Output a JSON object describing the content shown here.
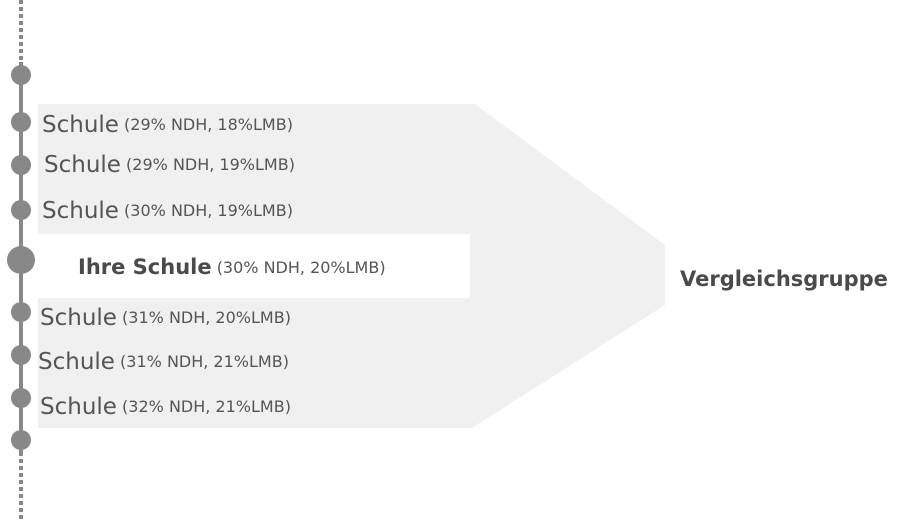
{
  "schools": [
    {
      "name": "Schule",
      "detail": "(29% NDH, 18%LMB)"
    },
    {
      "name": "Schule",
      "detail": "(29% NDH, 19%LMB)"
    },
    {
      "name": "Schule",
      "detail": "(30% NDH, 19%LMB)"
    },
    {
      "name": "Ihre Schule",
      "detail": "(30% NDH, 20%LMB)"
    },
    {
      "name": "Schule",
      "detail": "(31% NDH, 20%LMB)"
    },
    {
      "name": "Schule",
      "detail": "(31% NDH, 21%LMB)"
    },
    {
      "name": "Schule",
      "detail": "(32% NDH, 21%LMB)"
    }
  ],
  "group_label": "Vergleichsgruppe"
}
